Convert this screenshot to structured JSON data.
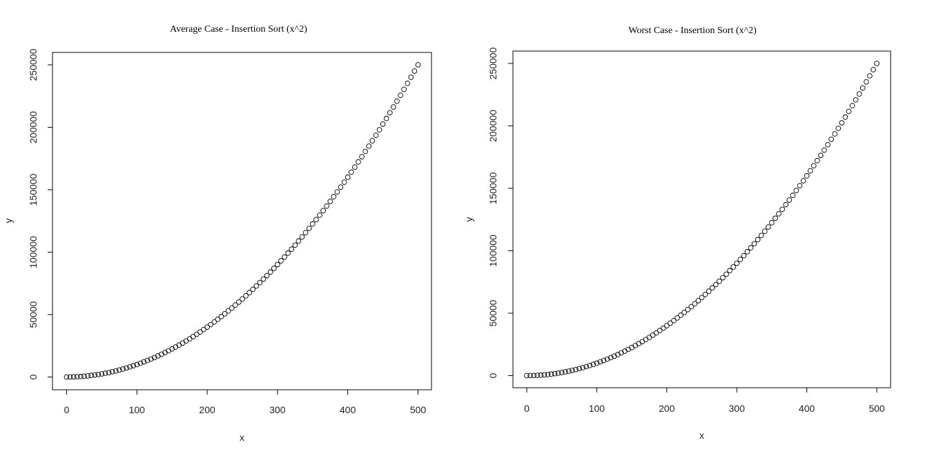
{
  "chart_data": [
    {
      "type": "scatter",
      "title": "Average Case - Insertion Sort (x^2)",
      "xlabel": "x",
      "ylabel": "y",
      "xlim": [
        -20,
        520
      ],
      "ylim": [
        -10000,
        260000
      ],
      "xticks": [
        0,
        100,
        200,
        300,
        400,
        500
      ],
      "yticks": [
        0,
        50000,
        100000,
        150000,
        200000,
        250000
      ],
      "xtick_labels": [
        "0",
        "100",
        "200",
        "300",
        "400",
        "500"
      ],
      "ytick_labels": [
        "0",
        "50000",
        "100000",
        "150000",
        "200000",
        "250000"
      ],
      "series": [
        {
          "name": "points",
          "x": [
            0,
            5,
            10,
            15,
            20,
            25,
            30,
            35,
            40,
            45,
            50,
            55,
            60,
            65,
            70,
            75,
            80,
            85,
            90,
            95,
            100,
            105,
            110,
            115,
            120,
            125,
            130,
            135,
            140,
            145,
            150,
            155,
            160,
            165,
            170,
            175,
            180,
            185,
            190,
            195,
            200,
            205,
            210,
            215,
            220,
            225,
            230,
            235,
            240,
            245,
            250,
            255,
            260,
            265,
            270,
            275,
            280,
            285,
            290,
            295,
            300,
            305,
            310,
            315,
            320,
            325,
            330,
            335,
            340,
            345,
            350,
            355,
            360,
            365,
            370,
            375,
            380,
            385,
            390,
            395,
            400,
            405,
            410,
            415,
            420,
            425,
            430,
            435,
            440,
            445,
            450,
            455,
            460,
            465,
            470,
            475,
            480,
            485,
            490,
            495,
            500
          ],
          "y": [
            0,
            25,
            100,
            225,
            400,
            625,
            900,
            1225,
            1600,
            2025,
            2500,
            3025,
            3600,
            4225,
            4900,
            5625,
            6400,
            7225,
            8100,
            9025,
            10000,
            11025,
            12100,
            13225,
            14400,
            15625,
            16900,
            18225,
            19600,
            21025,
            22500,
            24025,
            25600,
            27225,
            28900,
            30625,
            32400,
            34225,
            36100,
            38025,
            40000,
            42025,
            44100,
            46225,
            48400,
            50625,
            52900,
            55225,
            57600,
            60025,
            62500,
            65025,
            67600,
            70225,
            72900,
            75625,
            78400,
            81225,
            84100,
            87025,
            90000,
            93025,
            96100,
            99225,
            102400,
            105625,
            108900,
            112225,
            115600,
            119025,
            122500,
            126025,
            129600,
            133225,
            136900,
            140625,
            144400,
            148225,
            152100,
            156025,
            160000,
            164025,
            168100,
            172225,
            176400,
            180625,
            184900,
            189225,
            193600,
            198025,
            202500,
            207025,
            211600,
            216225,
            220900,
            225625,
            230400,
            235225,
            240100,
            245025,
            250000
          ]
        }
      ]
    },
    {
      "type": "scatter",
      "title": "Worst Case - Insertion Sort (x^2)",
      "xlabel": "x",
      "ylabel": "y",
      "xlim": [
        -20,
        520
      ],
      "ylim": [
        -10000,
        260000
      ],
      "xticks": [
        0,
        100,
        200,
        300,
        400,
        500
      ],
      "yticks": [
        0,
        50000,
        100000,
        150000,
        200000,
        250000
      ],
      "xtick_labels": [
        "0",
        "100",
        "200",
        "300",
        "400",
        "500"
      ],
      "ytick_labels": [
        "0",
        "50000",
        "100000",
        "150000",
        "200000",
        "250000"
      ],
      "series": [
        {
          "name": "points",
          "x": [
            0,
            5,
            10,
            15,
            20,
            25,
            30,
            35,
            40,
            45,
            50,
            55,
            60,
            65,
            70,
            75,
            80,
            85,
            90,
            95,
            100,
            105,
            110,
            115,
            120,
            125,
            130,
            135,
            140,
            145,
            150,
            155,
            160,
            165,
            170,
            175,
            180,
            185,
            190,
            195,
            200,
            205,
            210,
            215,
            220,
            225,
            230,
            235,
            240,
            245,
            250,
            255,
            260,
            265,
            270,
            275,
            280,
            285,
            290,
            295,
            300,
            305,
            310,
            315,
            320,
            325,
            330,
            335,
            340,
            345,
            350,
            355,
            360,
            365,
            370,
            375,
            380,
            385,
            390,
            395,
            400,
            405,
            410,
            415,
            420,
            425,
            430,
            435,
            440,
            445,
            450,
            455,
            460,
            465,
            470,
            475,
            480,
            485,
            490,
            495,
            500
          ],
          "y": [
            0,
            25,
            100,
            225,
            400,
            625,
            900,
            1225,
            1600,
            2025,
            2500,
            3025,
            3600,
            4225,
            4900,
            5625,
            6400,
            7225,
            8100,
            9025,
            10000,
            11025,
            12100,
            13225,
            14400,
            15625,
            16900,
            18225,
            19600,
            21025,
            22500,
            24025,
            25600,
            27225,
            28900,
            30625,
            32400,
            34225,
            36100,
            38025,
            40000,
            42025,
            44100,
            46225,
            48400,
            50625,
            52900,
            55225,
            57600,
            60025,
            62500,
            65025,
            67600,
            70225,
            72900,
            75625,
            78400,
            81225,
            84100,
            87025,
            90000,
            93025,
            96100,
            99225,
            102400,
            105625,
            108900,
            112225,
            115600,
            119025,
            122500,
            126025,
            129600,
            133225,
            136900,
            140625,
            144400,
            148225,
            152100,
            156025,
            160000,
            164025,
            168100,
            172225,
            176400,
            180625,
            184900,
            189225,
            193600,
            198025,
            202500,
            207025,
            211600,
            216225,
            220900,
            225625,
            230400,
            235225,
            240100,
            245025,
            250000
          ]
        }
      ]
    }
  ]
}
